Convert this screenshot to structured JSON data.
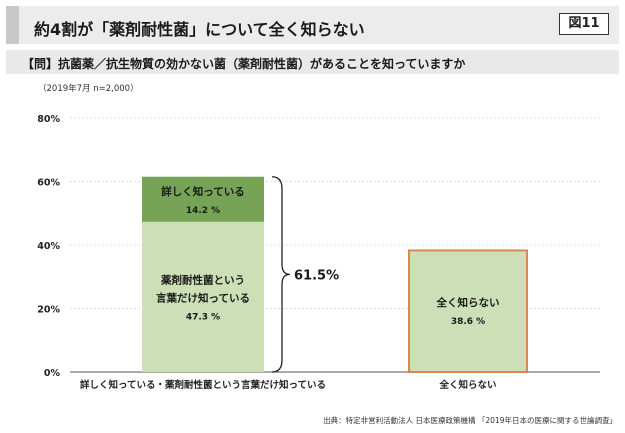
{
  "header": {
    "title": "約4割が「薬剤耐性菌」について全く知らない",
    "figure_label": "図11"
  },
  "question": "【問】抗菌薬／抗生物質の効かない菌（薬剤耐性菌）があることを知っていますか",
  "sample_note": "（2019年7月 n=2,000）",
  "source": "出典：特定非営利活動法人 日本医療政策機構 「2019年日本の医療に関する世論調査」",
  "colors": {
    "dark_green": "#77a356",
    "light_green": "#cddfb6",
    "box_green": "#cddfb6",
    "box_border": "#d98a4a",
    "grid": "#d3d3d3"
  },
  "chart_data": {
    "type": "bar",
    "ylim": [
      0,
      80
    ],
    "yticks": [
      "0%",
      "20%",
      "40%",
      "60%",
      "80%"
    ],
    "categories": [
      "詳しく知っている・薬剤耐性菌という言葉だけ知っている",
      "全く知らない"
    ],
    "bars": [
      {
        "segments": [
          {
            "label_lines": [
              "薬剤耐性菌という",
              "言葉だけ知っている"
            ],
            "value": 47.3,
            "value_label": "47.3 %",
            "color_key": "light_green"
          },
          {
            "label_lines": [
              "詳しく知っている"
            ],
            "value": 14.2,
            "value_label": "14.2 %",
            "color_key": "dark_green"
          }
        ]
      },
      {
        "segments": [
          {
            "label_lines": [
              "全く知らない"
            ],
            "value": 38.6,
            "value_label": "38.6 %",
            "color_key": "box_green",
            "outlined": true
          }
        ]
      }
    ],
    "total_annotation": "61.5%",
    "grid": true
  }
}
